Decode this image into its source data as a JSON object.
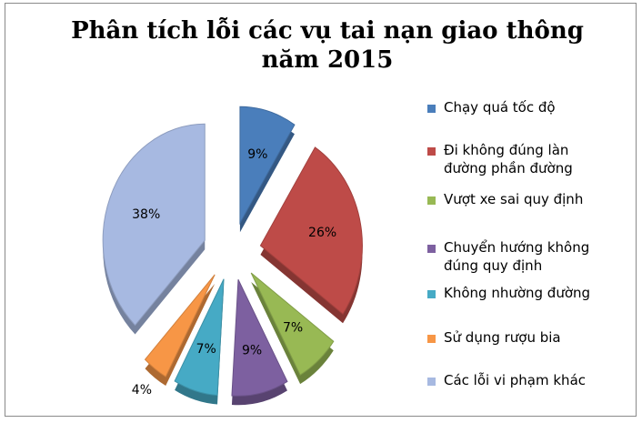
{
  "chart_data": {
    "type": "pie",
    "title_lines": [
      "Phân tích lỗi các vụ tai nạn giao thông",
      "năm 2015"
    ],
    "categories": [
      "Chạy quá tốc độ",
      "Đi không đúng làn đường phần đường",
      "Vượt xe sai quy định",
      "Chuyển hướng không đúng quy định",
      "Không nhường đường",
      "Sử dụng rượu bia",
      "Các lỗi vi phạm khác"
    ],
    "legend_lines": [
      [
        "Chạy quá tốc độ"
      ],
      [
        "Đi không đúng làn",
        "đường phần đường"
      ],
      [
        "Vượt xe sai quy định"
      ],
      [
        "Chuyển hướng không",
        "đúng quy định"
      ],
      [
        "Không nhường đường"
      ],
      [
        "Sử dụng rượu bia"
      ],
      [
        "Các lỗi vi phạm khác"
      ]
    ],
    "values": [
      9,
      26,
      7,
      9,
      7,
      4,
      38
    ],
    "data_labels": [
      "9%",
      "26%",
      "7%",
      "9%",
      "7%",
      "4%",
      "38%"
    ],
    "colors": [
      "#4a7ebb",
      "#be4b48",
      "#98b954",
      "#7d60a0",
      "#46aac5",
      "#f79646",
      "#a7b9e1"
    ],
    "legend_position": "right",
    "style": "exploded-3d"
  }
}
